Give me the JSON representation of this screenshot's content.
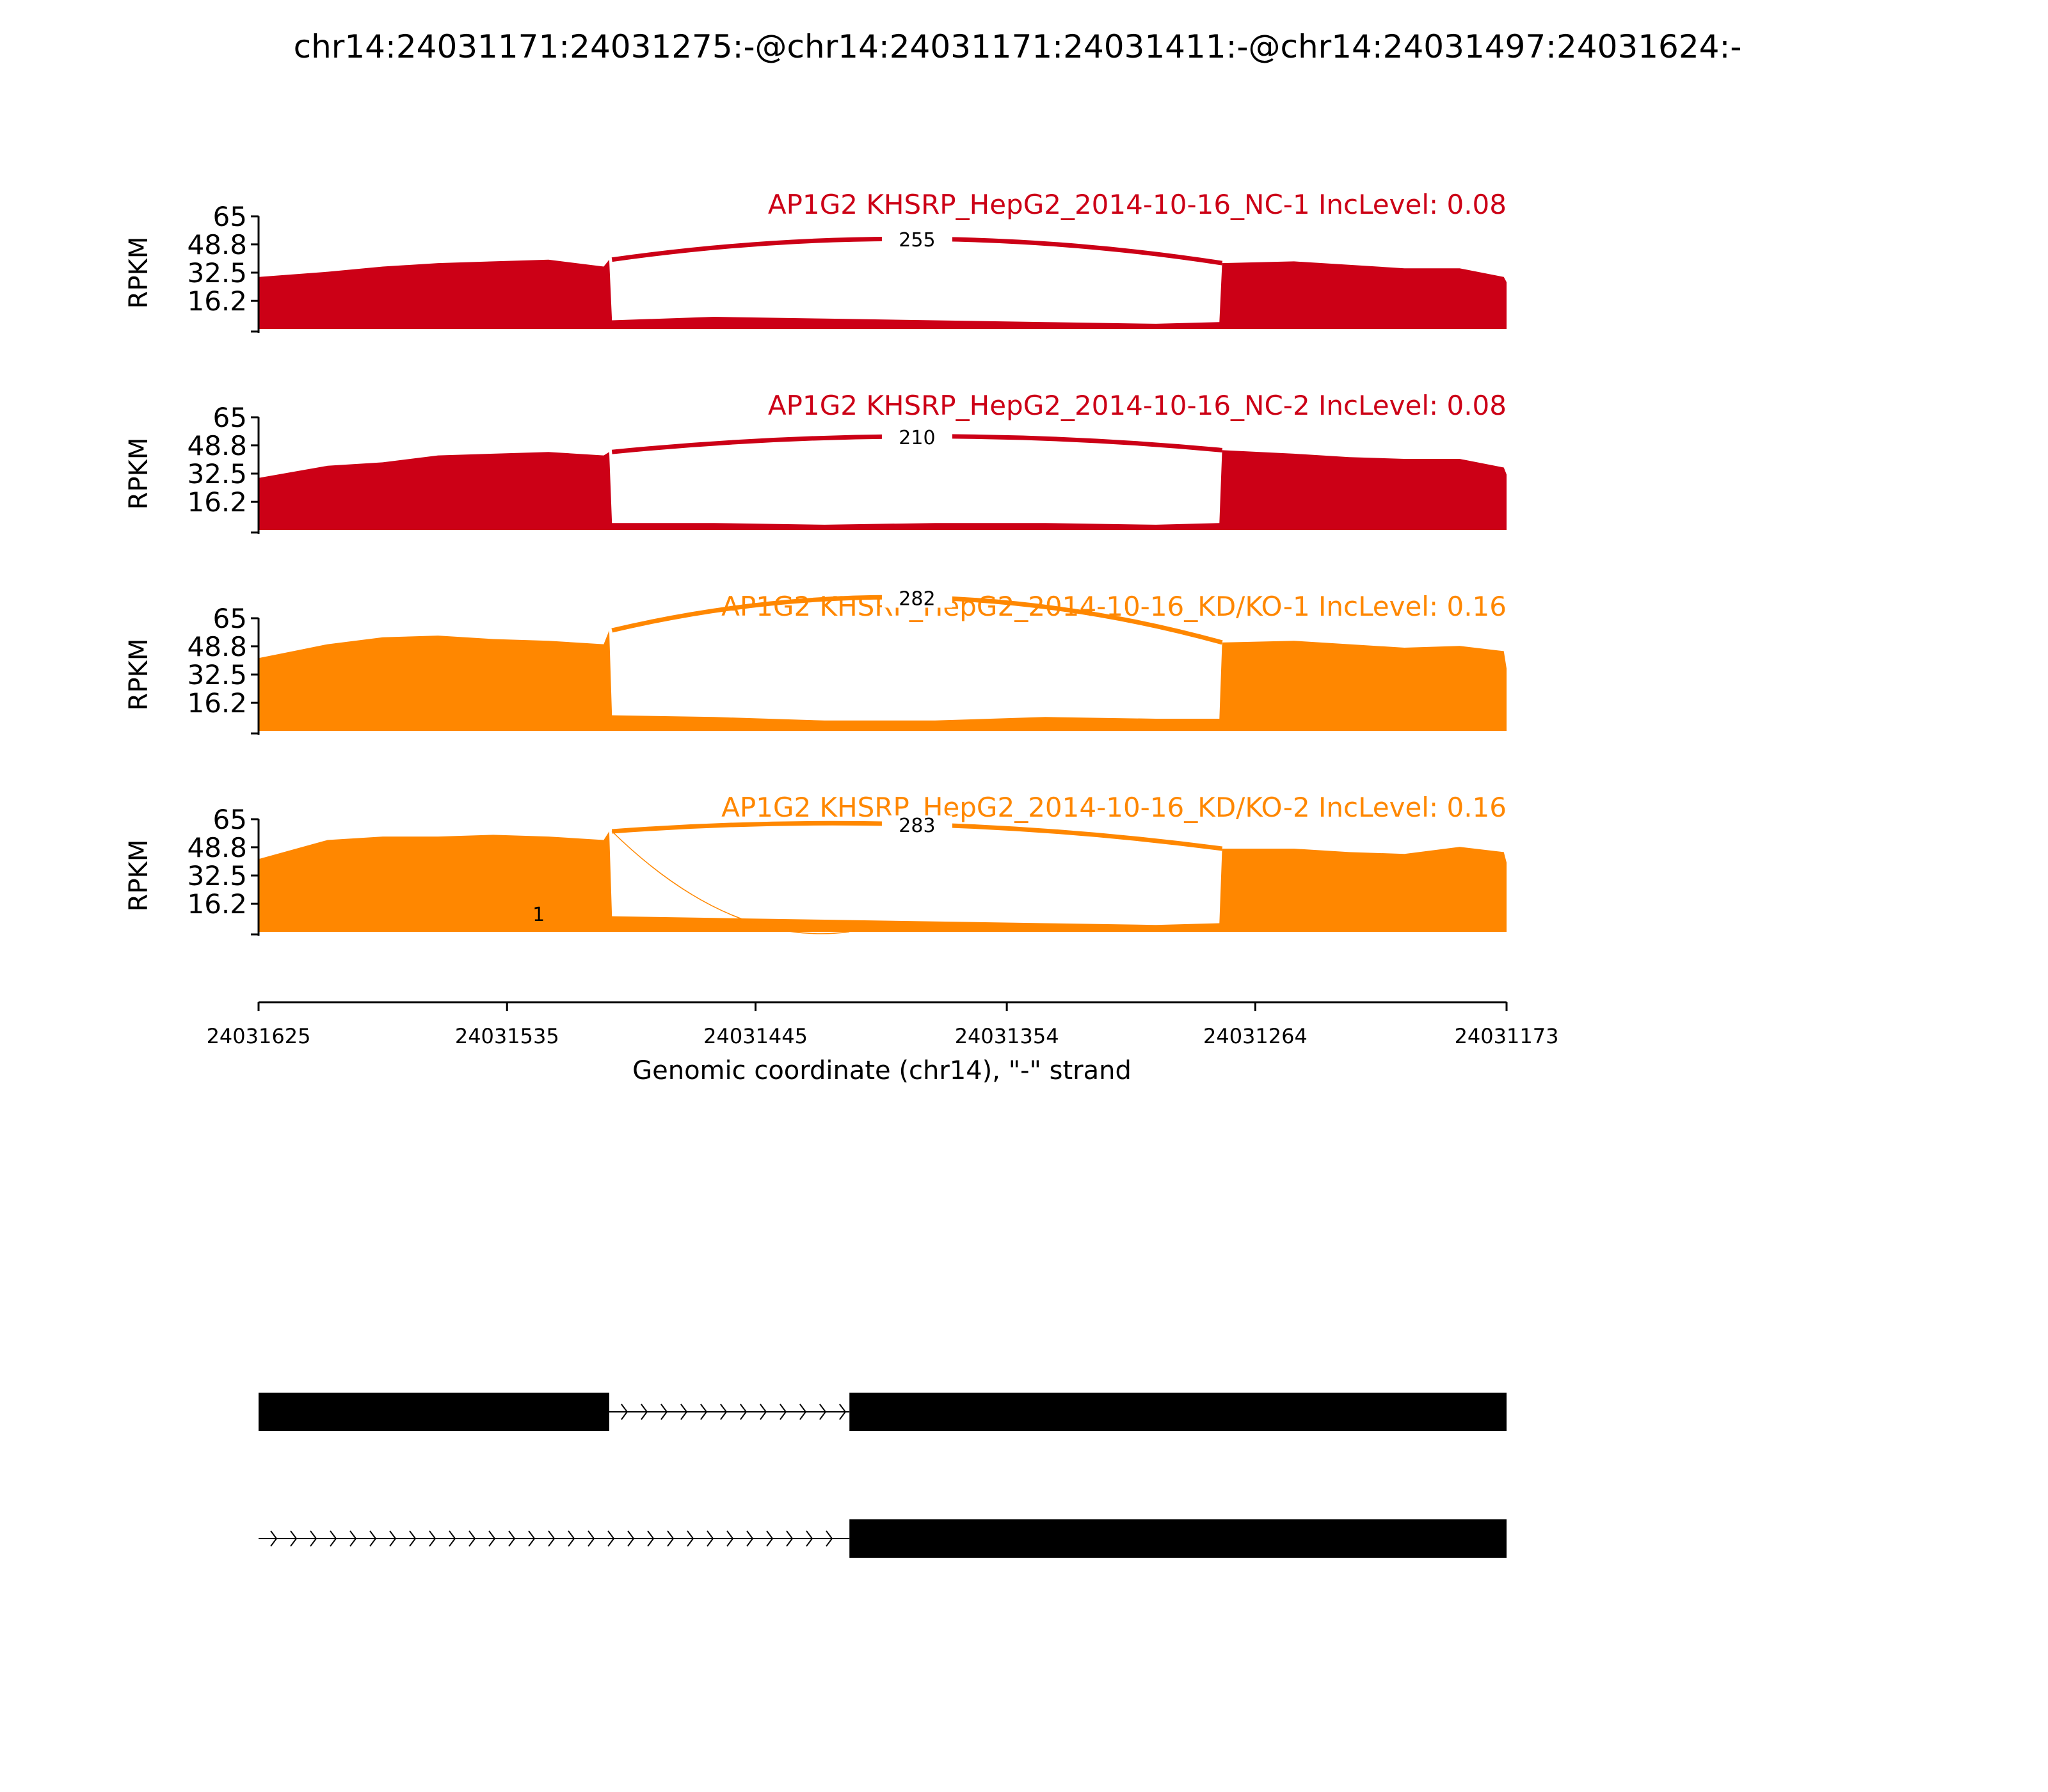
{
  "figure": {
    "title": "chr14:24031171:24031275:-@chr14:24031171:24031411:-@chr14:24031497:24031624:-",
    "colors": {
      "nc": "#cc0016",
      "kd": "#ff8700",
      "axis": "#000000",
      "exon": "#000000"
    }
  },
  "chart_data": {
    "type": "area",
    "title": "chr14:24031171:24031275:-@chr14:24031171:24031411:-@chr14:24031497:24031624:-",
    "xlabel": "Genomic coordinate (chr14), \"-\" strand",
    "ylabel": "RPKM",
    "x_axis": {
      "reversed": true,
      "xlim": [
        24031625,
        24031173
      ],
      "ticks": [
        "24031625",
        "24031535",
        "24031445",
        "24031354",
        "24031264",
        "24031173"
      ]
    },
    "y_axis": {
      "ylim": [
        0,
        65
      ],
      "ticks": [
        "16.2",
        "32.5",
        "48.8",
        "65"
      ]
    },
    "grid": false,
    "series": [
      {
        "name": "AP1G2 KHSRP_HepG2_2014-10-16_NC-1 IncLevel: 0.08",
        "group": "nc",
        "coverage_positions": [
          24031625,
          24031600,
          24031580,
          24031560,
          24031540,
          24031520,
          24031500,
          24031498,
          24031497,
          24031460,
          24031420,
          24031380,
          24031340,
          24031300,
          24031277,
          24031276,
          24031250,
          24031230,
          24031210,
          24031190,
          24031174,
          24031173
        ],
        "coverage_values": [
          30,
          33,
          36,
          38,
          39,
          40,
          36,
          40,
          5,
          7,
          6,
          5,
          4,
          3,
          4,
          38,
          39,
          37,
          35,
          35,
          30,
          27
        ],
        "junctions": [
          {
            "from": 24031497,
            "to": 24031276,
            "count": "255",
            "height": 52
          }
        ]
      },
      {
        "name": "AP1G2 KHSRP_HepG2_2014-10-16_NC-2 IncLevel: 0.08",
        "group": "nc",
        "coverage_positions": [
          24031625,
          24031600,
          24031580,
          24031560,
          24031540,
          24031520,
          24031500,
          24031498,
          24031497,
          24031460,
          24031420,
          24031380,
          24031340,
          24031300,
          24031277,
          24031276,
          24031250,
          24031230,
          24031210,
          24031190,
          24031174,
          24031173
        ],
        "coverage_values": [
          30,
          37,
          39,
          43,
          44,
          45,
          43,
          45,
          4,
          4,
          3,
          4,
          4,
          3,
          4,
          46,
          44,
          42,
          41,
          41,
          36,
          32
        ],
        "junctions": [
          {
            "from": 24031497,
            "to": 24031276,
            "count": "210",
            "height": 54
          }
        ]
      },
      {
        "name": "AP1G2 KHSRP_HepG2_2014-10-16_KD/KO-1 IncLevel: 0.16",
        "group": "kd",
        "coverage_positions": [
          24031625,
          24031600,
          24031580,
          24031560,
          24031540,
          24031520,
          24031500,
          24031498,
          24031497,
          24031460,
          24031420,
          24031380,
          24031340,
          24031300,
          24031277,
          24031276,
          24031250,
          24031230,
          24031210,
          24031190,
          24031174,
          24031173
        ],
        "coverage_values": [
          42,
          50,
          54,
          55,
          53,
          52,
          50,
          58,
          9,
          8,
          6,
          6,
          8,
          7,
          7,
          51,
          52,
          50,
          48,
          49,
          46,
          36
        ],
        "junctions": [
          {
            "from": 24031497,
            "to": 24031276,
            "count": "282",
            "height": 77
          }
        ]
      },
      {
        "name": "AP1G2 KHSRP_HepG2_2014-10-16_KD/KO-2 IncLevel: 0.16",
        "group": "kd",
        "coverage_positions": [
          24031625,
          24031600,
          24031580,
          24031560,
          24031540,
          24031520,
          24031500,
          24031498,
          24031497,
          24031460,
          24031420,
          24031380,
          24031340,
          24031300,
          24031277,
          24031276,
          24031250,
          24031230,
          24031210,
          24031190,
          24031174,
          24031173
        ],
        "coverage_values": [
          42,
          53,
          55,
          55,
          56,
          55,
          53,
          58,
          9,
          8,
          7,
          6,
          5,
          4,
          5,
          48,
          48,
          46,
          45,
          49,
          46,
          40
        ],
        "junctions": [
          {
            "from": 24031497,
            "to": 24031276,
            "count": "283",
            "height": 62
          },
          {
            "from": 24031497,
            "to": 24031411,
            "count": "1",
            "height": 10,
            "thin": true
          }
        ]
      }
    ],
    "isoforms": [
      {
        "exons": [
          [
            24031625,
            24031498
          ],
          [
            24031411,
            24031173
          ]
        ],
        "introns": [
          [
            24031498,
            24031411
          ]
        ]
      },
      {
        "exons": [
          [
            24031411,
            24031173
          ]
        ],
        "introns": [
          [
            24031625,
            24031411
          ]
        ]
      }
    ]
  }
}
